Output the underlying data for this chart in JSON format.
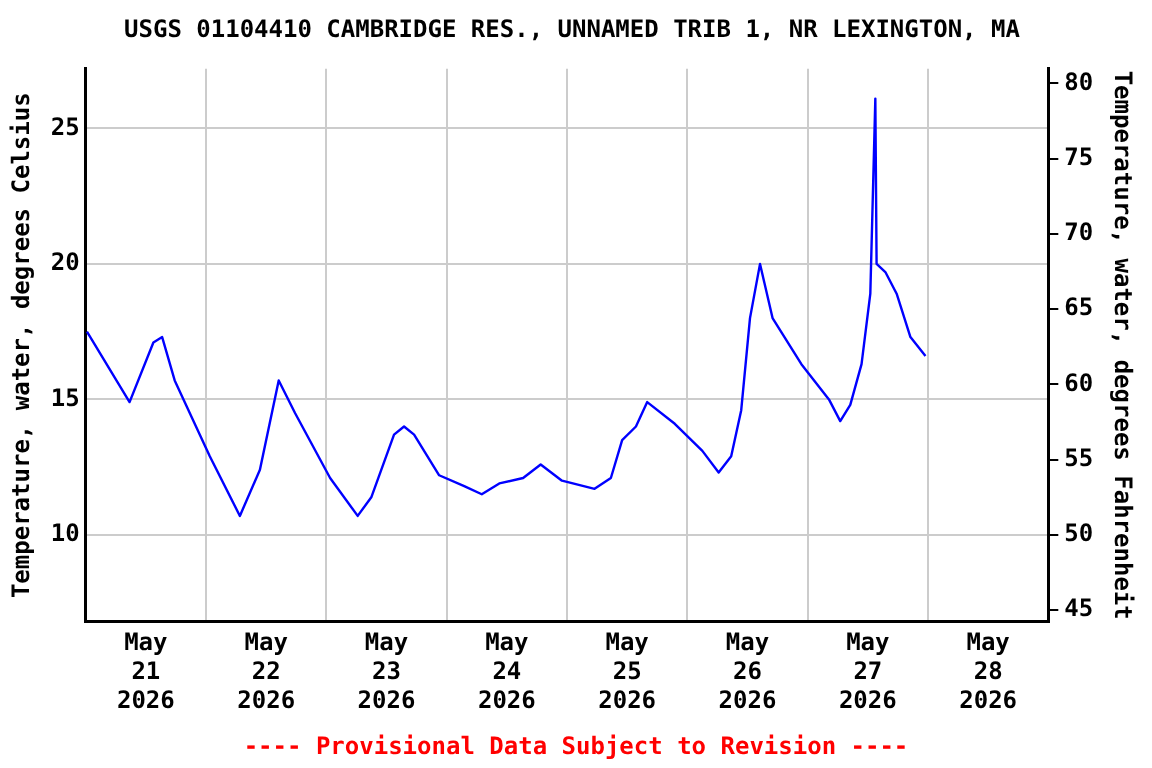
{
  "chart_data": {
    "type": "line",
    "title": "USGS 01104410 CAMBRIDGE RES., UNNAMED TRIB 1, NR LEXINGTON, MA",
    "ylabel": "Temperature, water, degrees Celsius",
    "y2label": "Temperature, water, degrees Fahrenheit",
    "annotations": [
      "---- Provisional Data Subject to Revision ----"
    ],
    "x": [
      "2026-05-21T00:15",
      "2026-05-21T08:45",
      "2026-05-21T13:30",
      "2026-05-21T15:15",
      "2026-05-21T17:45",
      "2026-05-22T00:45",
      "2026-05-22T06:45",
      "2026-05-22T10:45",
      "2026-05-22T14:30",
      "2026-05-22T17:45",
      "2026-05-23T00:45",
      "2026-05-23T06:15",
      "2026-05-23T09:00",
      "2026-05-23T13:30",
      "2026-05-23T15:30",
      "2026-05-23T17:30",
      "2026-05-23T22:30",
      "2026-05-24T03:30",
      "2026-05-24T07:00",
      "2026-05-24T10:30",
      "2026-05-24T15:15",
      "2026-05-24T18:45",
      "2026-05-24T23:00",
      "2026-05-25T05:30",
      "2026-05-25T08:45",
      "2026-05-25T11:00",
      "2026-05-25T13:45",
      "2026-05-25T16:00",
      "2026-05-25T21:30",
      "2026-05-26T03:00",
      "2026-05-26T06:15",
      "2026-05-26T08:45",
      "2026-05-26T10:45",
      "2026-05-26T12:30",
      "2026-05-26T14:30",
      "2026-05-26T17:00",
      "2026-05-26T22:45",
      "2026-05-27T04:15",
      "2026-05-27T06:30",
      "2026-05-27T08:30",
      "2026-05-27T10:45",
      "2026-05-27T12:30",
      "2026-05-27T13:30",
      "2026-05-27T13:45",
      "2026-05-27T15:30",
      "2026-05-27T17:45",
      "2026-05-27T20:30",
      "2026-05-27T23:30"
    ],
    "series": [
      {
        "color": "#0000ff",
        "values": [
          17.5,
          14.9,
          17.1,
          17.3,
          15.7,
          12.9,
          10.7,
          12.4,
          15.7,
          14.5,
          12.1,
          10.7,
          11.4,
          13.7,
          14.0,
          13.7,
          12.2,
          11.8,
          11.5,
          11.9,
          12.1,
          12.6,
          12.0,
          11.7,
          12.1,
          13.5,
          14.0,
          14.9,
          14.1,
          13.1,
          12.3,
          12.9,
          14.6,
          18.0,
          20.0,
          18.0,
          16.3,
          15.0,
          14.2,
          14.8,
          16.3,
          18.9,
          26.1,
          20.0,
          19.7,
          18.9,
          17.3,
          16.6
        ]
      }
    ],
    "xlim": [
      "2026-05-21T00:00",
      "2026-05-29T00:00"
    ],
    "xticks": [
      {
        "value": "2026-05-21T12:00",
        "label": "May 21 2026"
      },
      {
        "value": "2026-05-22T00:00",
        "label": null
      },
      {
        "value": "2026-05-22T12:00",
        "label": "May 22 2026"
      },
      {
        "value": "2026-05-23T00:00",
        "label": null
      },
      {
        "value": "2026-05-23T12:00",
        "label": "May 23 2026"
      },
      {
        "value": "2026-05-24T00:00",
        "label": null
      },
      {
        "value": "2026-05-24T12:00",
        "label": "May 24 2026"
      },
      {
        "value": "2026-05-25T00:00",
        "label": null
      },
      {
        "value": "2026-05-25T12:00",
        "label": "May 25 2026"
      },
      {
        "value": "2026-05-26T00:00",
        "label": null
      },
      {
        "value": "2026-05-26T12:00",
        "label": "May 26 2026"
      },
      {
        "value": "2026-05-27T00:00",
        "label": null
      },
      {
        "value": "2026-05-27T12:00",
        "label": "May 27 2026"
      },
      {
        "value": "2026-05-28T00:00",
        "label": null
      },
      {
        "value": "2026-05-28T12:00",
        "label": "May 28 2026"
      }
    ],
    "ylim": [
      6.8,
      27.2
    ],
    "yticks": [
      10,
      15,
      20,
      25
    ],
    "y2lim": [
      44.24,
      80.96
    ],
    "y2ticks": [
      45,
      50,
      55,
      60,
      65,
      70,
      75,
      80
    ],
    "grid": true,
    "marker": "none",
    "line_style": "solid"
  }
}
